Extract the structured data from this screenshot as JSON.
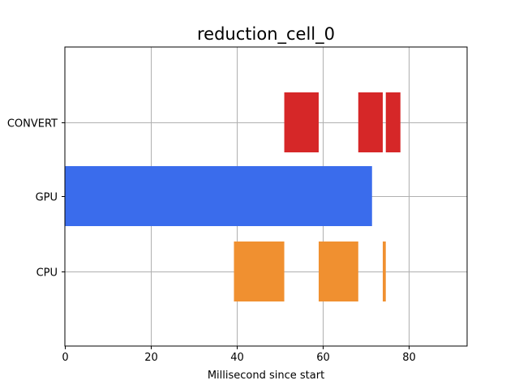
{
  "chart_data": {
    "type": "bar",
    "orientation": "horizontal",
    "title": "reduction_cell_0",
    "xlabel": "Millisecond since start",
    "ylabel": "",
    "xlim": [
      0,
      93.5
    ],
    "x_ticks": [
      0,
      20,
      40,
      60,
      80
    ],
    "grid": true,
    "categories": [
      "CPU",
      "GPU",
      "CONVERT"
    ],
    "colors": {
      "CPU": "#f09030",
      "GPU": "#3a6cec",
      "CONVERT": "#d62728"
    },
    "segments": [
      {
        "category": "CONVERT",
        "start": 51.0,
        "end": 59.0
      },
      {
        "category": "CONVERT",
        "start": 68.2,
        "end": 73.9
      },
      {
        "category": "CONVERT",
        "start": 74.6,
        "end": 78.0
      },
      {
        "category": "GPU",
        "start": 0.0,
        "end": 71.4
      },
      {
        "category": "CPU",
        "start": 39.3,
        "end": 51.0
      },
      {
        "category": "CPU",
        "start": 59.0,
        "end": 68.2
      },
      {
        "category": "CPU",
        "start": 73.9,
        "end": 74.6
      }
    ]
  }
}
